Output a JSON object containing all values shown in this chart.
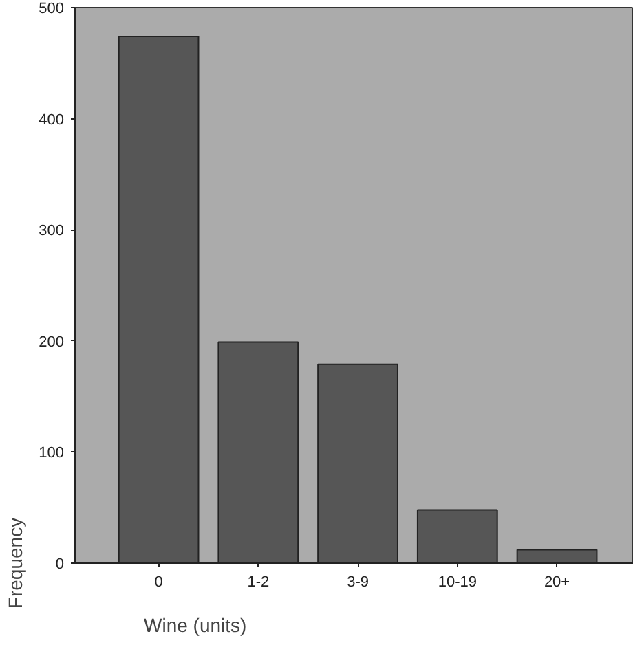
{
  "chart_data": {
    "type": "bar",
    "xlabel": "Wine (units)",
    "ylabel": "Frequency",
    "categories": [
      "0",
      "1-2",
      "3-9",
      "10-19",
      "20+"
    ],
    "values": [
      474,
      199,
      179,
      48,
      12
    ],
    "color": "#565656",
    "ylim": [
      0,
      500
    ],
    "yticks": [
      0,
      100,
      200,
      300,
      400,
      500
    ],
    "grid": false
  }
}
